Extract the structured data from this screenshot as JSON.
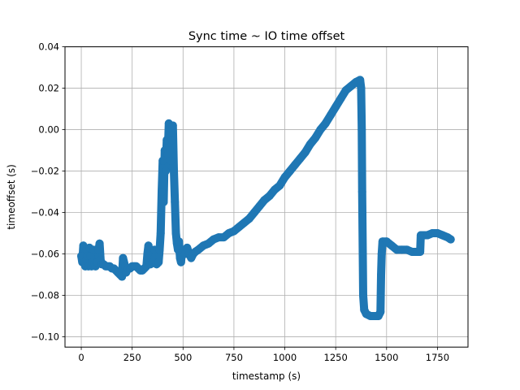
{
  "chart_data": {
    "type": "scatter",
    "title": "Sync time ~ IO time offset",
    "xlabel": "timestamp (s)",
    "ylabel": "timeoffset (s)",
    "xlim": [
      -80,
      1900
    ],
    "ylim": [
      -0.105,
      0.04
    ],
    "xticks": [
      0,
      250,
      500,
      750,
      1000,
      1250,
      1500,
      1750
    ],
    "xtick_labels": [
      "0",
      "250",
      "500",
      "750",
      "1000",
      "1250",
      "1500",
      "1750"
    ],
    "yticks": [
      -0.1,
      -0.08,
      -0.06,
      -0.04,
      -0.02,
      0.0,
      0.02,
      0.04
    ],
    "ytick_labels": [
      "−0.10",
      "−0.08",
      "−0.06",
      "−0.04",
      "−0.02",
      "0.00",
      "0.02",
      "0.04"
    ],
    "grid": true,
    "series_color": "#1f77b4",
    "series": [
      {
        "points": [
          [
            0,
            -0.061
          ],
          [
            5,
            -0.064
          ],
          [
            10,
            -0.056
          ],
          [
            15,
            -0.064
          ],
          [
            20,
            -0.066
          ],
          [
            25,
            -0.058
          ],
          [
            30,
            -0.061
          ],
          [
            35,
            -0.066
          ],
          [
            40,
            -0.057
          ],
          [
            45,
            -0.061
          ],
          [
            50,
            -0.066
          ],
          [
            55,
            -0.064
          ],
          [
            60,
            -0.058
          ],
          [
            65,
            -0.065
          ],
          [
            70,
            -0.066
          ],
          [
            75,
            -0.064
          ],
          [
            80,
            -0.064
          ],
          [
            85,
            -0.058
          ],
          [
            90,
            -0.055
          ],
          [
            95,
            -0.063
          ],
          [
            100,
            -0.065
          ],
          [
            110,
            -0.065
          ],
          [
            120,
            -0.066
          ],
          [
            130,
            -0.066
          ],
          [
            140,
            -0.066
          ],
          [
            150,
            -0.067
          ],
          [
            160,
            -0.067
          ],
          [
            170,
            -0.068
          ],
          [
            180,
            -0.069
          ],
          [
            190,
            -0.07
          ],
          [
            200,
            -0.071
          ],
          [
            205,
            -0.062
          ],
          [
            210,
            -0.064
          ],
          [
            215,
            -0.066
          ],
          [
            220,
            -0.069
          ],
          [
            230,
            -0.067
          ],
          [
            240,
            -0.067
          ],
          [
            250,
            -0.066
          ],
          [
            260,
            -0.066
          ],
          [
            270,
            -0.066
          ],
          [
            280,
            -0.067
          ],
          [
            290,
            -0.068
          ],
          [
            300,
            -0.068
          ],
          [
            310,
            -0.067
          ],
          [
            320,
            -0.066
          ],
          [
            325,
            -0.06
          ],
          [
            330,
            -0.056
          ],
          [
            335,
            -0.064
          ],
          [
            340,
            -0.065
          ],
          [
            350,
            -0.064
          ],
          [
            360,
            -0.058
          ],
          [
            370,
            -0.065
          ],
          [
            380,
            -0.064
          ],
          [
            385,
            -0.058
          ],
          [
            390,
            -0.05
          ],
          [
            395,
            -0.03
          ],
          [
            400,
            -0.015
          ],
          [
            405,
            -0.035
          ],
          [
            410,
            -0.01
          ],
          [
            415,
            -0.02
          ],
          [
            420,
            -0.005
          ],
          [
            425,
            -0.012
          ],
          [
            430,
            0.003
          ],
          [
            435,
            -0.01
          ],
          [
            440,
            -0.015
          ],
          [
            445,
            -0.005
          ],
          [
            450,
            0.002
          ],
          [
            455,
            -0.02
          ],
          [
            460,
            -0.035
          ],
          [
            465,
            -0.05
          ],
          [
            470,
            -0.055
          ],
          [
            475,
            -0.058
          ],
          [
            480,
            -0.054
          ],
          [
            485,
            -0.062
          ],
          [
            490,
            -0.064
          ],
          [
            495,
            -0.059
          ],
          [
            500,
            -0.058
          ],
          [
            510,
            -0.06
          ],
          [
            520,
            -0.057
          ],
          [
            530,
            -0.06
          ],
          [
            540,
            -0.062
          ],
          [
            550,
            -0.06
          ],
          [
            560,
            -0.059
          ],
          [
            575,
            -0.058
          ],
          [
            600,
            -0.056
          ],
          [
            625,
            -0.055
          ],
          [
            650,
            -0.053
          ],
          [
            675,
            -0.052
          ],
          [
            700,
            -0.052
          ],
          [
            725,
            -0.05
          ],
          [
            750,
            -0.049
          ],
          [
            775,
            -0.047
          ],
          [
            800,
            -0.045
          ],
          [
            825,
            -0.043
          ],
          [
            850,
            -0.04
          ],
          [
            875,
            -0.037
          ],
          [
            900,
            -0.034
          ],
          [
            925,
            -0.032
          ],
          [
            950,
            -0.029
          ],
          [
            975,
            -0.027
          ],
          [
            1000,
            -0.023
          ],
          [
            1025,
            -0.02
          ],
          [
            1050,
            -0.017
          ],
          [
            1075,
            -0.014
          ],
          [
            1100,
            -0.011
          ],
          [
            1125,
            -0.007
          ],
          [
            1150,
            -0.004
          ],
          [
            1175,
            0.0
          ],
          [
            1200,
            0.003
          ],
          [
            1225,
            0.007
          ],
          [
            1250,
            0.011
          ],
          [
            1275,
            0.015
          ],
          [
            1300,
            0.019
          ],
          [
            1325,
            0.021
          ],
          [
            1350,
            0.023
          ],
          [
            1370,
            0.024
          ],
          [
            1375,
            0.02
          ],
          [
            1378,
            0.0
          ],
          [
            1380,
            -0.03
          ],
          [
            1383,
            -0.06
          ],
          [
            1385,
            -0.08
          ],
          [
            1390,
            -0.087
          ],
          [
            1400,
            -0.089
          ],
          [
            1420,
            -0.09
          ],
          [
            1440,
            -0.09
          ],
          [
            1460,
            -0.09
          ],
          [
            1470,
            -0.088
          ],
          [
            1473,
            -0.07
          ],
          [
            1476,
            -0.06
          ],
          [
            1480,
            -0.054
          ],
          [
            1500,
            -0.054
          ],
          [
            1525,
            -0.056
          ],
          [
            1550,
            -0.058
          ],
          [
            1575,
            -0.058
          ],
          [
            1600,
            -0.058
          ],
          [
            1625,
            -0.059
          ],
          [
            1650,
            -0.059
          ],
          [
            1665,
            -0.059
          ],
          [
            1668,
            -0.051
          ],
          [
            1680,
            -0.051
          ],
          [
            1700,
            -0.051
          ],
          [
            1725,
            -0.05
          ],
          [
            1750,
            -0.05
          ],
          [
            1775,
            -0.051
          ],
          [
            1800,
            -0.052
          ],
          [
            1815,
            -0.053
          ]
        ]
      }
    ]
  }
}
